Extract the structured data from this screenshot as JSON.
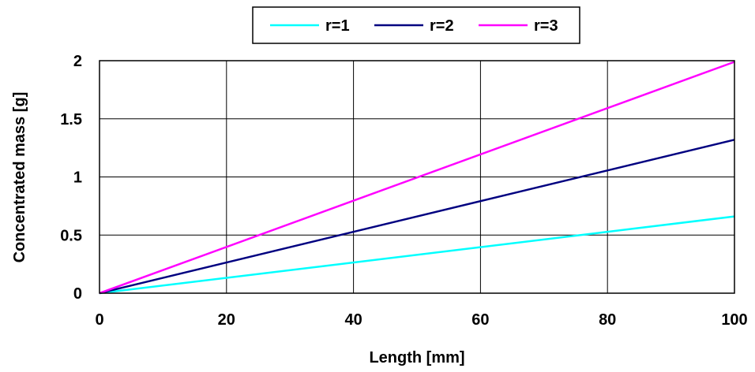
{
  "chart_data": {
    "type": "line",
    "title": "",
    "xlabel": "Length [mm]",
    "ylabel": "Concentrated mass [g]",
    "xlim": [
      0,
      100
    ],
    "ylim": [
      0,
      2
    ],
    "x_ticks": [
      0,
      20,
      40,
      60,
      80,
      100
    ],
    "y_ticks": [
      0,
      0.5,
      1,
      1.5,
      2
    ],
    "x_tick_labels": [
      "0",
      "20",
      "40",
      "60",
      "80",
      "100"
    ],
    "y_tick_labels": [
      "0",
      "0.5",
      "1",
      "1.5",
      "2"
    ],
    "grid": true,
    "legend_position": "top-center",
    "series": [
      {
        "name": "r=1",
        "color": "#00ffff",
        "x": [
          0,
          100
        ],
        "y": [
          0,
          0.66
        ]
      },
      {
        "name": "r=2",
        "color": "#000080",
        "x": [
          0,
          100
        ],
        "y": [
          0,
          1.32
        ]
      },
      {
        "name": "r=3",
        "color": "#ff00ff",
        "x": [
          0,
          100
        ],
        "y": [
          0,
          1.99
        ]
      }
    ]
  }
}
